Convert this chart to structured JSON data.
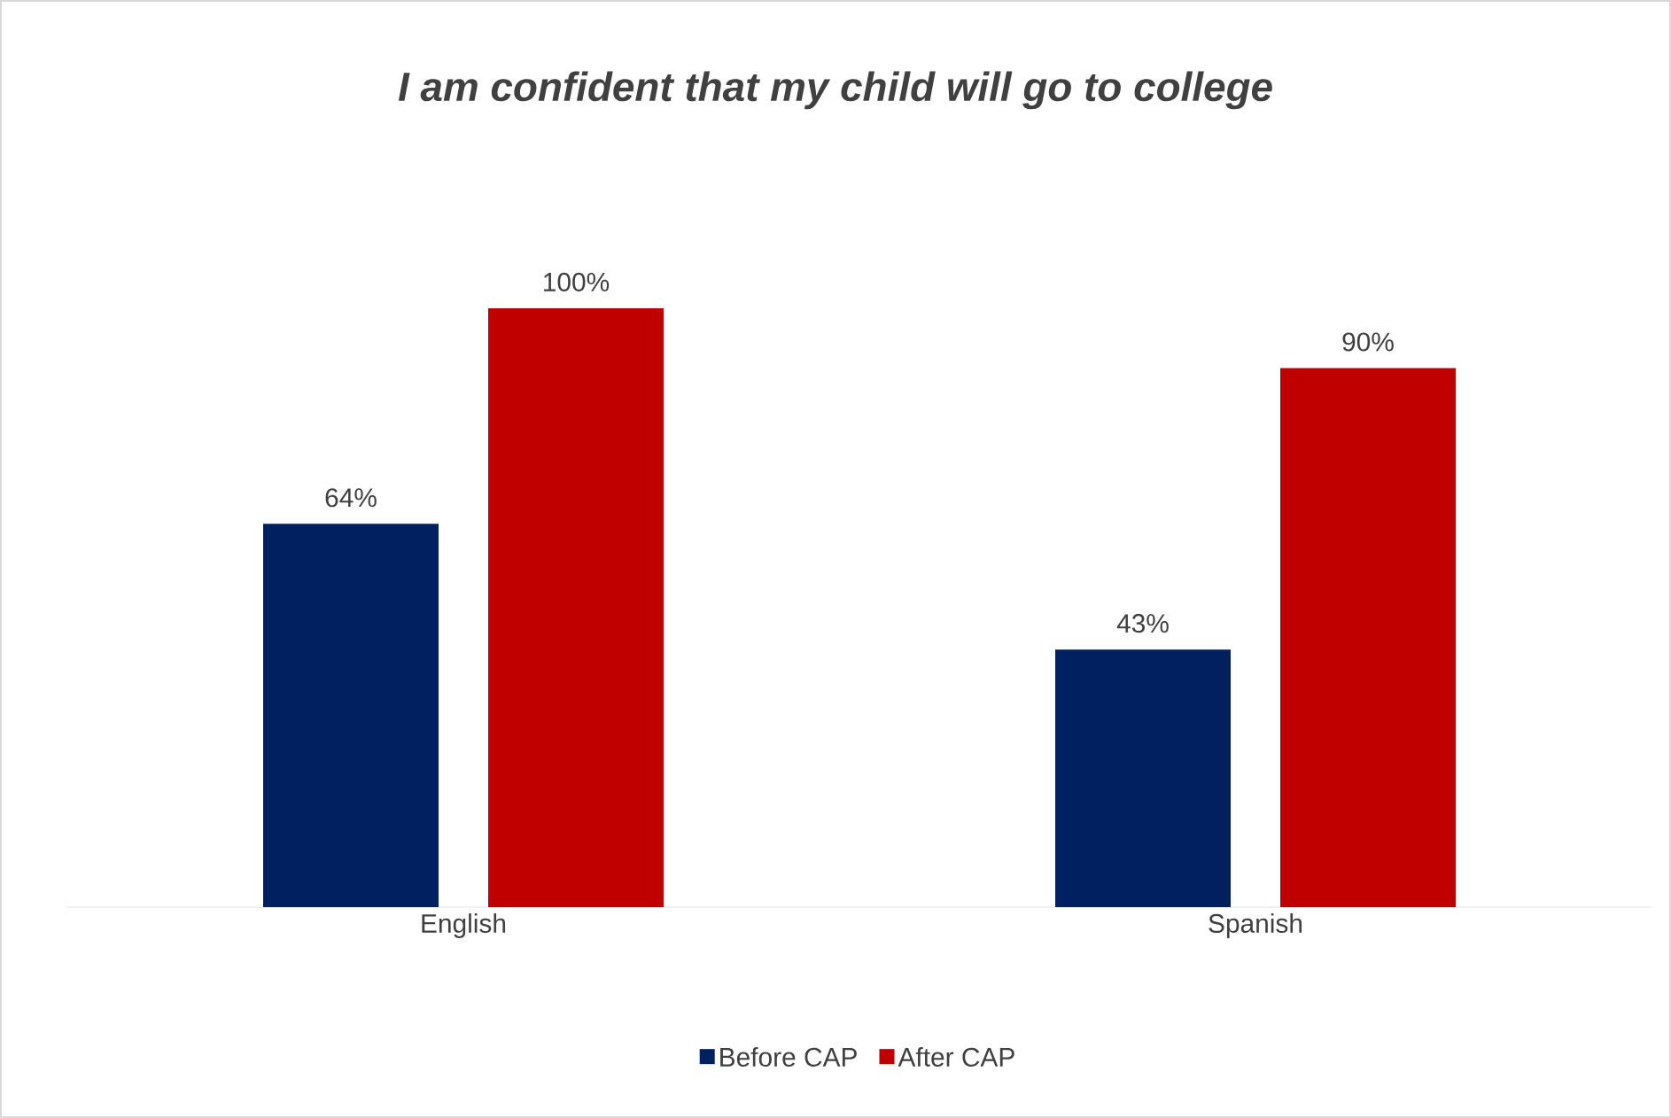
{
  "chart_data": {
    "type": "bar",
    "title": "I am confident that my child will go to college",
    "categories": [
      "English",
      "Spanish"
    ],
    "series": [
      {
        "name": "Before CAP",
        "color": "#002060",
        "values": [
          64,
          43
        ],
        "value_labels": [
          "64%",
          "43%"
        ]
      },
      {
        "name": "After CAP",
        "color": "#c00000",
        "values": [
          100,
          90
        ],
        "value_labels": [
          "100%",
          "90%"
        ]
      }
    ],
    "legend": "bottom"
  }
}
